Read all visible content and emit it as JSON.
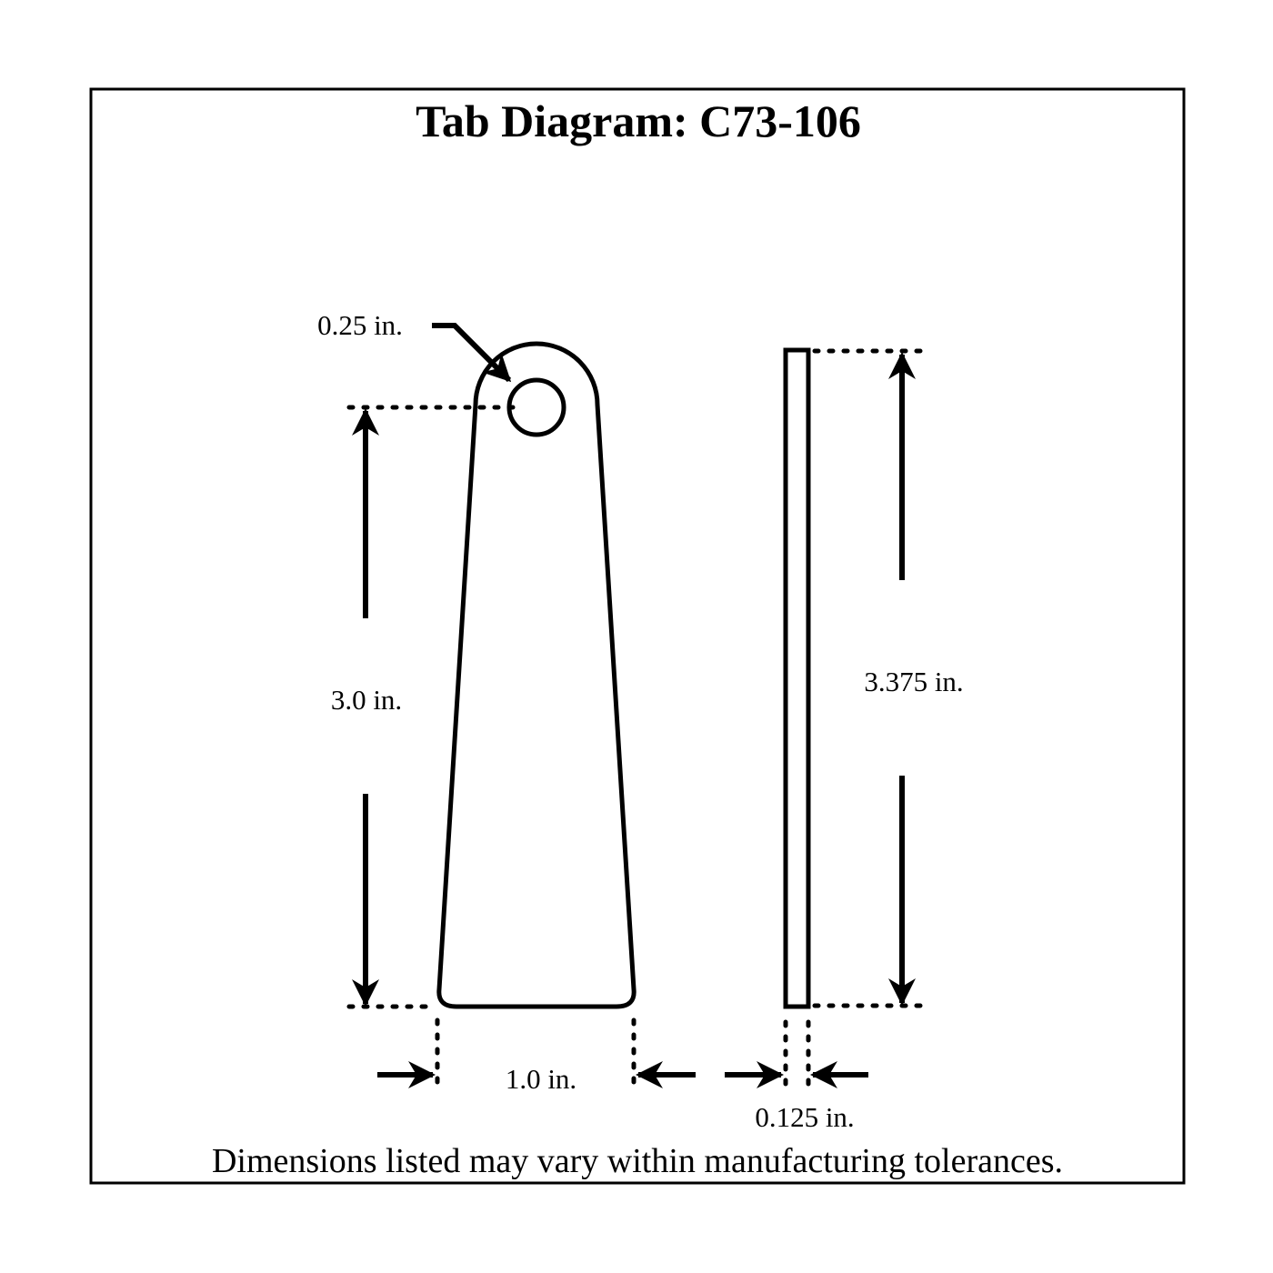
{
  "title": "Tab Diagram: C73-106",
  "labels": {
    "hole_diameter": "0.25 in.",
    "hole_to_bottom": "3.0 in.",
    "overall_length": "3.375 in.",
    "bottom_width": "1.0 in.",
    "thickness": "0.125 in."
  },
  "footer": "Dimensions listed may vary within manufacturing tolerances.",
  "colors": {
    "line": "#000000",
    "background": "#ffffff"
  }
}
